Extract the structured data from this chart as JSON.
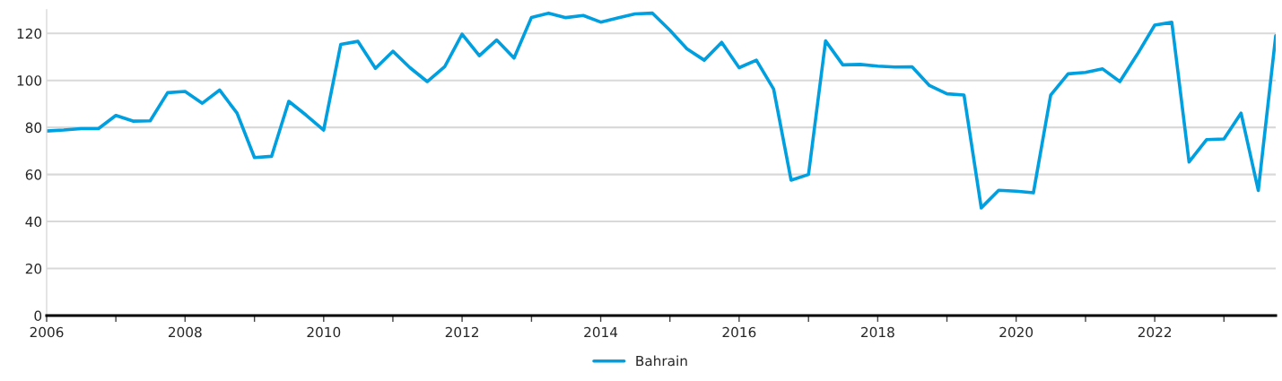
{
  "chart_data": {
    "type": "line",
    "x": [
      "2006-01",
      "2006-04",
      "2006-07",
      "2006-10",
      "2007-01",
      "2007-04",
      "2007-07",
      "2007-10",
      "2008-01",
      "2008-04",
      "2008-07",
      "2008-10",
      "2009-01",
      "2009-04",
      "2009-07",
      "2009-10",
      "2010-01",
      "2010-04",
      "2010-07",
      "2010-10",
      "2011-01",
      "2011-04",
      "2011-07",
      "2011-10",
      "2012-01",
      "2012-04",
      "2012-07",
      "2012-10",
      "2013-01",
      "2013-04",
      "2013-07",
      "2013-10",
      "2014-01",
      "2014-04",
      "2014-07",
      "2014-10",
      "2015-01",
      "2015-04",
      "2015-07",
      "2015-10",
      "2016-01",
      "2016-04",
      "2016-07",
      "2016-10",
      "2017-01",
      "2017-04",
      "2017-07",
      "2017-10",
      "2018-01",
      "2018-04",
      "2018-07",
      "2018-10",
      "2019-01",
      "2019-04",
      "2019-07",
      "2019-10",
      "2020-01",
      "2020-04",
      "2020-07",
      "2020-10",
      "2021-01",
      "2021-04",
      "2021-07",
      "2021-10",
      "2022-01",
      "2022-04",
      "2022-07",
      "2022-10",
      "2023-01",
      "2023-04",
      "2023-07",
      "2023-10"
    ],
    "series": [
      {
        "name": "Bahrain",
        "color": "#009fdf",
        "values": [
          78.5,
          78.9,
          79.5,
          79.5,
          85.1,
          82.7,
          82.8,
          94.8,
          95.3,
          90.3,
          95.9,
          86.1,
          67.2,
          67.7,
          91.1,
          85.2,
          78.9,
          115.3,
          116.6,
          105.1,
          112.4,
          105.4,
          99.5,
          105.8,
          119.7,
          110.5,
          117.2,
          109.5,
          126.8,
          128.6,
          126.7,
          127.6,
          124.8,
          126.6,
          128.3,
          128.6,
          121.3,
          113.4,
          108.6,
          116.2,
          105.4,
          108.6,
          96.3,
          57.6,
          60.0,
          116.8,
          106.6,
          106.8,
          106.1,
          105.7,
          105.8,
          97.8,
          94.3,
          93.8,
          45.8,
          53.3,
          52.9,
          52.2,
          93.7,
          102.8,
          103.4,
          104.9,
          99.5,
          111.1,
          123.5,
          124.7,
          65.3,
          74.8,
          75.1,
          86.1,
          53.2,
          119.0
        ]
      }
    ],
    "xlim": [
      "2006-01",
      "2023-10"
    ],
    "xticks": [
      "2006",
      {
        "value": "2007",
        "label": null
      },
      "2008",
      {
        "value": "2009",
        "label": null
      },
      "2010",
      {
        "value": "2011",
        "label": null
      },
      "2012",
      {
        "value": "2013",
        "label": null
      },
      "2014",
      {
        "value": "2015",
        "label": null
      },
      "2016",
      {
        "value": "2017",
        "label": null
      },
      "2018",
      {
        "value": "2019",
        "label": null
      },
      "2020",
      {
        "value": "2021",
        "label": null
      },
      "2022",
      {
        "value": "2023",
        "label": null
      }
    ],
    "ylim": [
      0,
      130
    ],
    "yticks": [
      0,
      20,
      40,
      60,
      80,
      100,
      120
    ],
    "grid": "y",
    "legend": "bottom",
    "marker": "none",
    "line_style": "solid"
  }
}
